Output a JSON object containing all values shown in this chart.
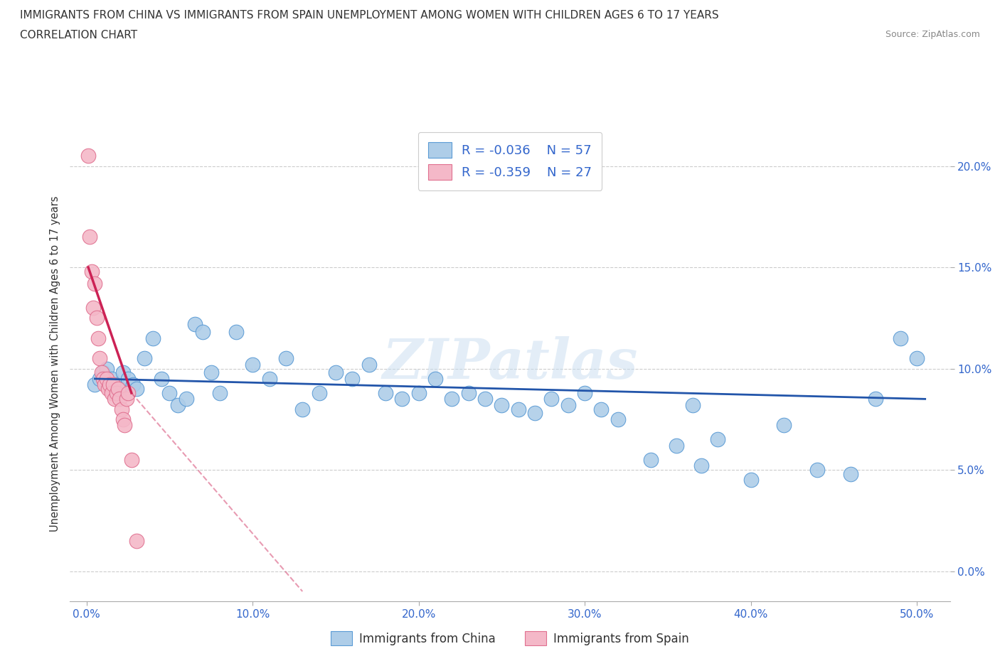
{
  "title_line1": "IMMIGRANTS FROM CHINA VS IMMIGRANTS FROM SPAIN UNEMPLOYMENT AMONG WOMEN WITH CHILDREN AGES 6 TO 17 YEARS",
  "title_line2": "CORRELATION CHART",
  "source": "Source: ZipAtlas.com",
  "xlabel_ticks": [
    "0.0%",
    "10.0%",
    "20.0%",
    "30.0%",
    "40.0%",
    "50.0%"
  ],
  "xlabel_vals": [
    0,
    10,
    20,
    30,
    40,
    50
  ],
  "ylabel": "Unemployment Among Women with Children Ages 6 to 17 years",
  "ytick_labels": [
    "0.0%",
    "5.0%",
    "10.0%",
    "15.0%",
    "20.0%"
  ],
  "ytick_vals": [
    0,
    5,
    10,
    15,
    20
  ],
  "xlim": [
    -1.0,
    52
  ],
  "ylim": [
    -1.5,
    22
  ],
  "watermark": "ZIPatlas",
  "legend_china_R": "R = -0.036",
  "legend_china_N": "N = 57",
  "legend_spain_R": "R = -0.359",
  "legend_spain_N": "N = 27",
  "china_color": "#aecde8",
  "china_edge_color": "#5b9bd5",
  "spain_color": "#f4b8c8",
  "spain_edge_color": "#e07090",
  "trend_china_color": "#2255aa",
  "trend_spain_color": "#cc2255",
  "china_scatter_x": [
    0.5,
    0.8,
    1.0,
    1.2,
    1.5,
    1.8,
    2.0,
    2.2,
    2.5,
    2.8,
    3.0,
    3.5,
    4.0,
    4.5,
    5.0,
    5.5,
    6.0,
    6.5,
    7.0,
    7.5,
    8.0,
    9.0,
    10.0,
    11.0,
    12.0,
    13.0,
    14.0,
    15.0,
    16.0,
    17.0,
    18.0,
    19.0,
    20.0,
    21.0,
    22.0,
    23.0,
    24.0,
    25.0,
    26.0,
    27.0,
    28.0,
    29.0,
    30.0,
    31.0,
    32.0,
    34.0,
    35.5,
    37.0,
    38.0,
    40.0,
    42.0,
    44.0,
    46.0,
    47.5,
    49.0,
    50.0,
    36.5
  ],
  "china_scatter_y": [
    9.2,
    9.5,
    9.8,
    10.0,
    9.5,
    9.2,
    9.0,
    9.8,
    9.5,
    9.2,
    9.0,
    10.5,
    11.5,
    9.5,
    8.8,
    8.2,
    8.5,
    12.2,
    11.8,
    9.8,
    8.8,
    11.8,
    10.2,
    9.5,
    10.5,
    8.0,
    8.8,
    9.8,
    9.5,
    10.2,
    8.8,
    8.5,
    8.8,
    9.5,
    8.5,
    8.8,
    8.5,
    8.2,
    8.0,
    7.8,
    8.5,
    8.2,
    8.8,
    8.0,
    7.5,
    5.5,
    6.2,
    5.2,
    6.5,
    4.5,
    7.2,
    5.0,
    4.8,
    8.5,
    11.5,
    10.5,
    8.2
  ],
  "spain_scatter_x": [
    0.1,
    0.2,
    0.3,
    0.4,
    0.5,
    0.6,
    0.7,
    0.8,
    0.9,
    1.0,
    1.1,
    1.2,
    1.3,
    1.4,
    1.5,
    1.6,
    1.7,
    1.8,
    1.9,
    2.0,
    2.1,
    2.2,
    2.3,
    2.4,
    2.5,
    2.7,
    3.0
  ],
  "spain_scatter_y": [
    20.5,
    16.5,
    14.8,
    13.0,
    14.2,
    12.5,
    11.5,
    10.5,
    9.8,
    9.5,
    9.2,
    9.5,
    9.0,
    9.2,
    8.8,
    9.2,
    8.5,
    8.8,
    9.0,
    8.5,
    8.0,
    7.5,
    7.2,
    8.5,
    8.8,
    5.5,
    1.5
  ],
  "china_trend_x0": 0.5,
  "china_trend_x1": 50.5,
  "china_trend_y0": 9.5,
  "china_trend_y1": 8.5,
  "spain_solid_x0": 0.1,
  "spain_solid_x1": 2.7,
  "spain_solid_y0": 15.0,
  "spain_solid_y1": 8.8,
  "spain_dash_x0": 2.7,
  "spain_dash_x1": 13.0,
  "spain_dash_y0": 8.8,
  "spain_dash_y1": -1.0
}
